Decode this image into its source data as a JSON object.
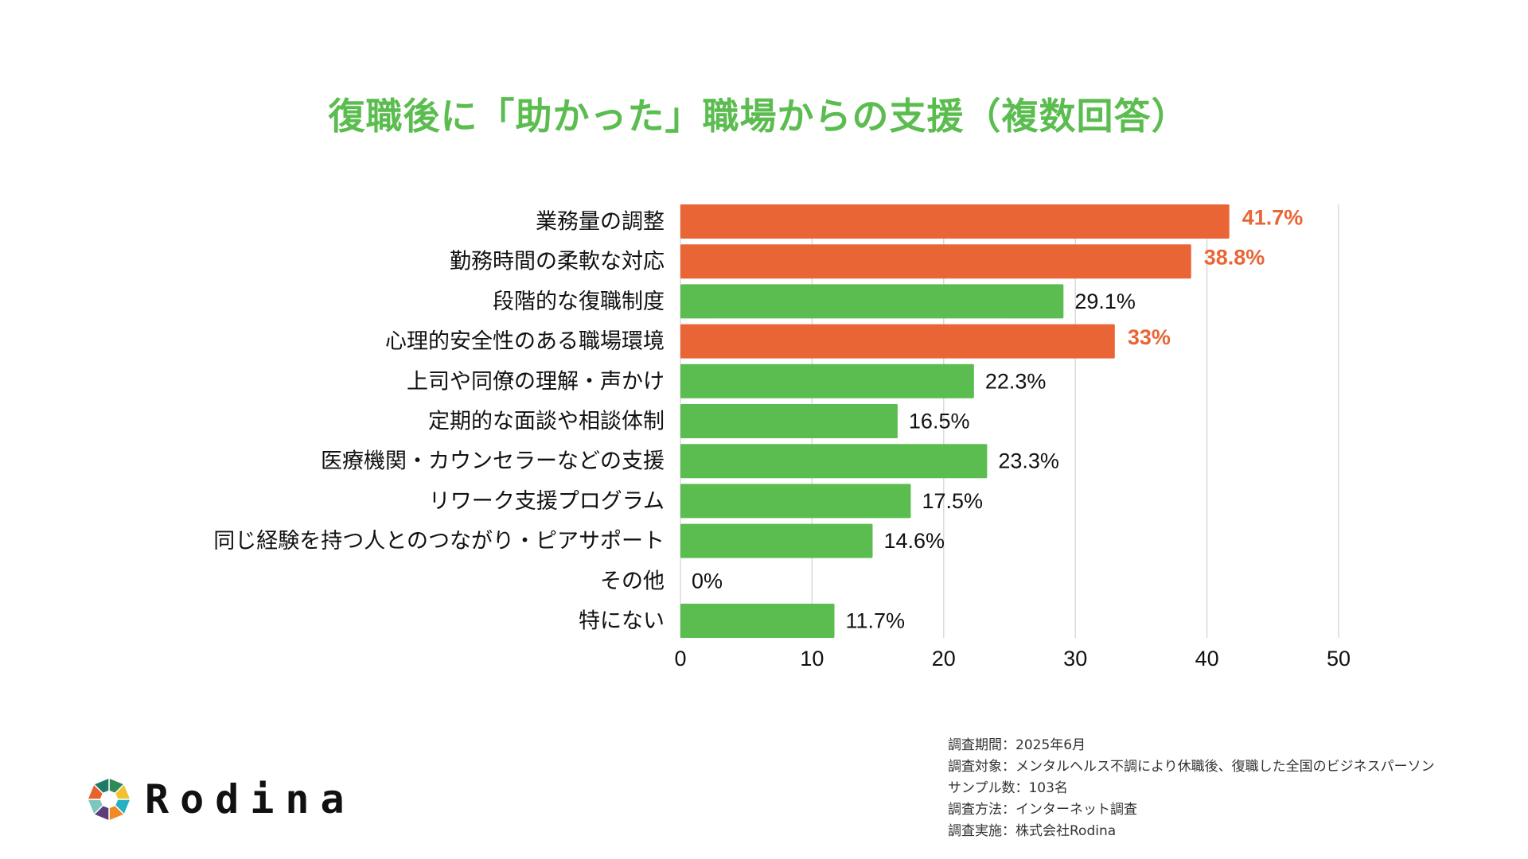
{
  "chart_data": {
    "type": "bar",
    "orientation": "horizontal",
    "title": "復職後に「助かった」職場からの支援（複数回答）",
    "categories": [
      "業務量の調整",
      "勤務時間の柔軟な対応",
      "段階的な復職制度",
      "心理的安全性のある職場環境",
      "上司や同僚の理解・声かけ",
      "定期的な面談や相談体制",
      "医療機関・カウンセラーなどの支援",
      "リワーク支援プログラム",
      "同じ経験を持つ人とのつながり・ピアサポート",
      "その他",
      "特にない"
    ],
    "values": [
      41.7,
      38.8,
      29.1,
      33,
      22.3,
      16.5,
      23.3,
      17.5,
      14.6,
      0,
      11.7
    ],
    "data_labels": [
      "41.7%",
      "38.8%",
      "29.1%",
      "33%",
      "22.3%",
      "16.5%",
      "23.3%",
      "17.5%",
      "14.6%",
      "0%",
      "11.7%"
    ],
    "highlighted": [
      true,
      true,
      false,
      true,
      false,
      false,
      false,
      false,
      false,
      false,
      false
    ],
    "xlim": [
      0,
      50
    ],
    "xticks": [
      "0",
      "10",
      "20",
      "30",
      "40",
      "50"
    ],
    "grid": true,
    "colors": {
      "highlight": "#ea6535",
      "default": "#5bbd4f",
      "title": "#5bbd4f",
      "grid": "#d0d0d0"
    }
  },
  "notes": [
    "調査期間：2025年6月",
    "調査対象：メンタルヘルス不調により休職後、復職した全国のビジネスパーソン",
    "サンプル数：103名",
    "調査方法：インターネット調査",
    "調査実施：株式会社Rodina"
  ],
  "logo": {
    "text": "Rodina"
  }
}
